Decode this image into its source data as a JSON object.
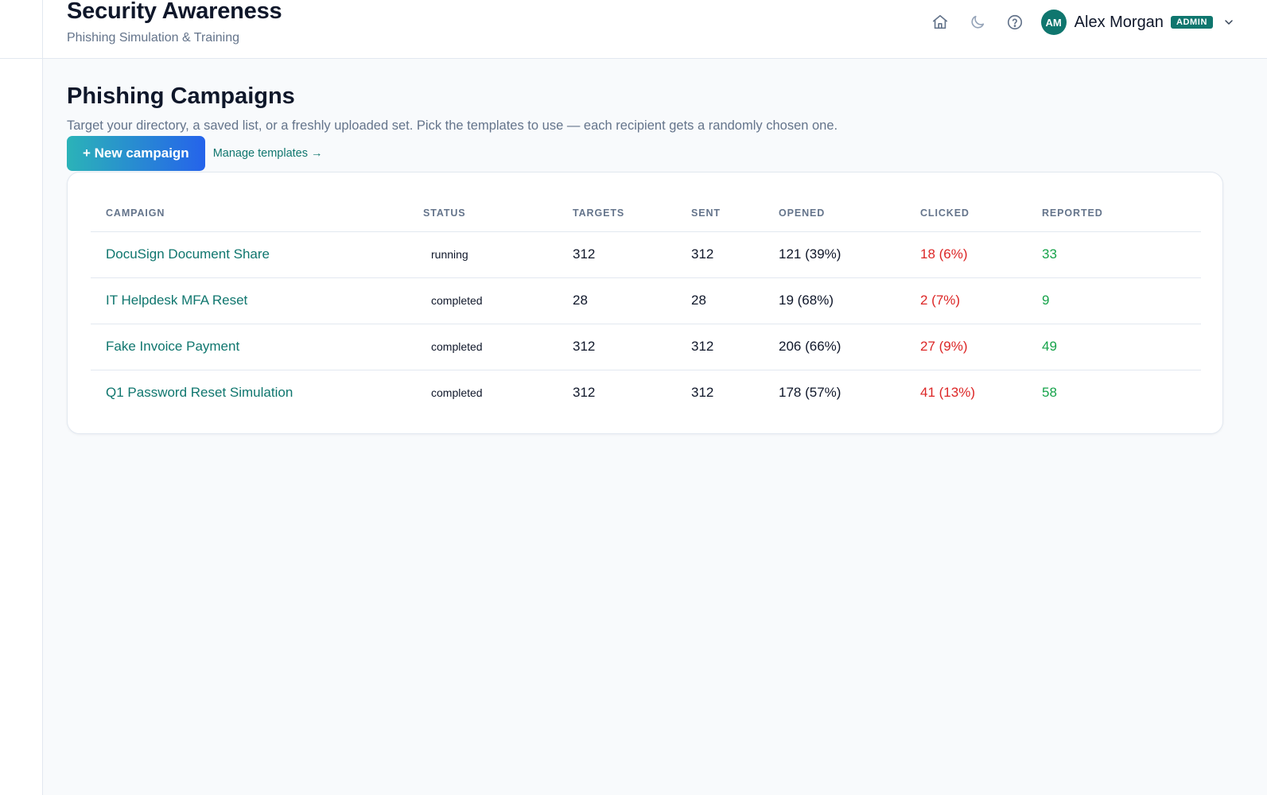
{
  "app": {
    "title": "Security Awareness",
    "subtitle": "Phishing Simulation & Training"
  },
  "header": {
    "icons": [
      "home-icon",
      "moon-icon",
      "help-icon"
    ],
    "user": {
      "initials": "AM",
      "name": "Alex Morgan",
      "role": "ADMIN"
    }
  },
  "page": {
    "title": "Phishing Campaigns",
    "description": "Target your directory, a saved list, or a freshly uploaded set. Pick the templates to use — each recipient gets a randomly chosen one.",
    "new_campaign_label": "+ New campaign",
    "manage_templates_label": "Manage templates →"
  },
  "table": {
    "columns": [
      "CAMPAIGN",
      "STATUS",
      "TARGETS",
      "SENT",
      "OPENED",
      "CLICKED",
      "REPORTED"
    ],
    "rows": [
      {
        "campaign": "DocuSign Document Share",
        "status": "running",
        "targets": "312",
        "sent": "312",
        "opened": "121 (39%)",
        "clicked": "18 (6%)",
        "reported": "33"
      },
      {
        "campaign": "IT Helpdesk MFA Reset",
        "status": "completed",
        "targets": "28",
        "sent": "28",
        "opened": "19 (68%)",
        "clicked": "2 (7%)",
        "reported": "9"
      },
      {
        "campaign": "Fake Invoice Payment",
        "status": "completed",
        "targets": "312",
        "sent": "312",
        "opened": "206 (66%)",
        "clicked": "27 (9%)",
        "reported": "49"
      },
      {
        "campaign": "Q1 Password Reset Simulation",
        "status": "completed",
        "targets": "312",
        "sent": "312",
        "opened": "178 (57%)",
        "clicked": "41 (13%)",
        "reported": "58"
      }
    ]
  },
  "colors": {
    "accent": "#0f766e",
    "clicked": "#dc2626",
    "reported": "#16a34a"
  }
}
